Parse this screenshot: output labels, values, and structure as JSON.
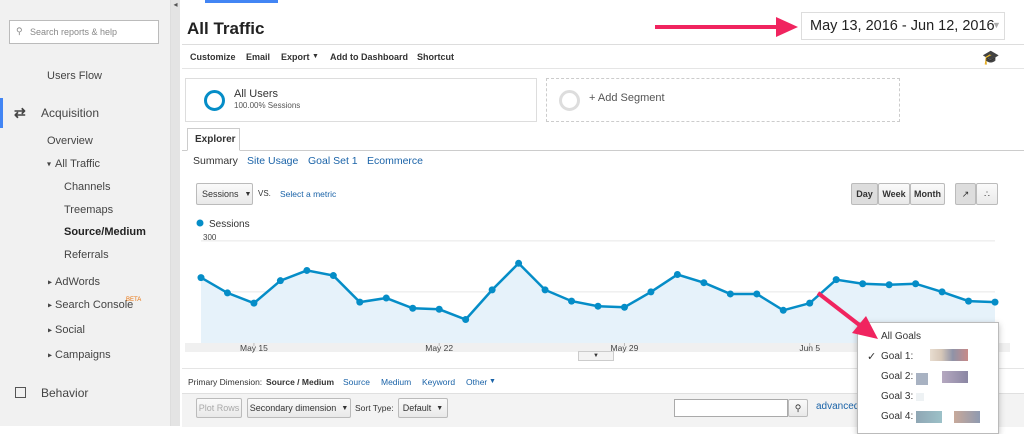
{
  "sidebar": {
    "search_placeholder": "Search reports & help",
    "items": [
      "Users Flow",
      "Acquisition",
      "Overview",
      "All Traffic",
      "Channels",
      "Treemaps",
      "Source/Medium",
      "Referrals",
      "AdWords",
      "Search Console",
      "Social",
      "Campaigns",
      "Behavior"
    ],
    "badge": "BETA"
  },
  "header": {
    "title": "All Traffic",
    "date_range": "May 13, 2016 - Jun 12, 2016"
  },
  "toolbar": [
    "Customize",
    "Email",
    "Export",
    "Add to Dashboard",
    "Shortcut"
  ],
  "segments": {
    "name": "All Users",
    "detail": "100.00% Sessions",
    "add": "+ Add Segment"
  },
  "tab": "Explorer",
  "subtabs": [
    "Summary",
    "Site Usage",
    "Goal Set 1",
    "Ecommerce"
  ],
  "controls": {
    "metric": "Sessions",
    "vs": "VS.",
    "select": "Select a metric",
    "periods": [
      "Day",
      "Week",
      "Month"
    ]
  },
  "chart_data": {
    "type": "line",
    "categories": [
      null,
      null,
      "May 15",
      null,
      null,
      null,
      null,
      null,
      null,
      "May 22",
      null,
      null,
      null,
      null,
      null,
      null,
      "May 29",
      null,
      null,
      null,
      null,
      null,
      null,
      "Jun 5",
      null,
      null,
      null,
      null,
      null,
      null,
      null
    ],
    "series": [
      {
        "name": "Sessions",
        "color": "#058dc7",
        "values": [
          192,
          147,
          117,
          183,
          213,
          198,
          120,
          132,
          102,
          99,
          69,
          156,
          234,
          156,
          123,
          108,
          105,
          150,
          201,
          177,
          144,
          144,
          96,
          117,
          186,
          174,
          171,
          174,
          150,
          123,
          120
        ]
      }
    ],
    "area_color": "#e6f2fa",
    "ylim": [
      0,
      320
    ],
    "yticks": [
      150,
      300
    ],
    "grid": true
  },
  "goals_menu": [
    "All Goals",
    "Goal 1:",
    "Goal 2:",
    "Goal 3:",
    "Goal 4:"
  ],
  "dimension_bar": {
    "label": "Primary Dimension:",
    "items": [
      "Source / Medium",
      "Source",
      "Medium",
      "Keyword",
      "Other"
    ]
  },
  "table_controls": {
    "plot_rows": "Plot Rows",
    "secondary": "Secondary dimension",
    "sort_label": "Sort Type:",
    "sort": "Default",
    "advanced": "advanced"
  }
}
